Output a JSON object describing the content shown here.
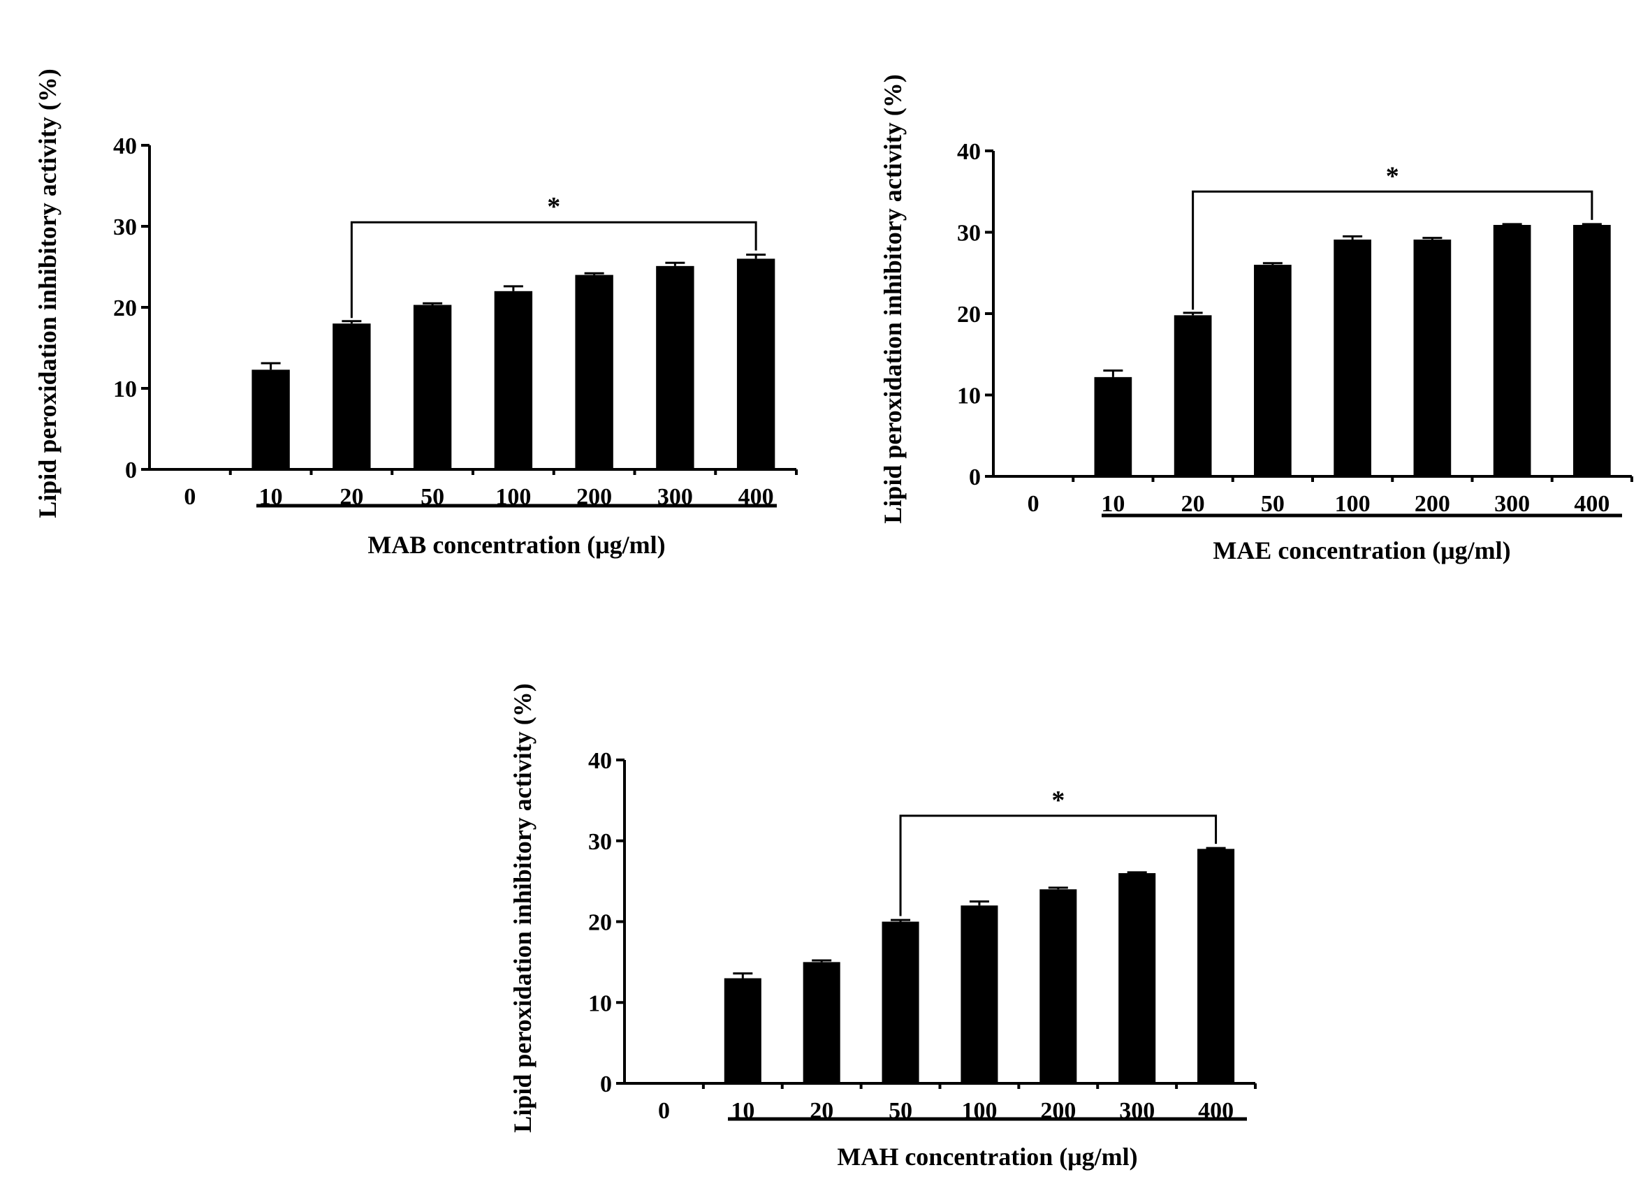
{
  "chart_data": [
    {
      "type": "bar",
      "ylabel": "Lipid peroxidation inhibitory activity (%)",
      "xlabel": "MAB concentration (μg/ml)",
      "categories": [
        "0",
        "10",
        "20",
        "50",
        "100",
        "200",
        "300",
        "400"
      ],
      "values": [
        0,
        12.3,
        18.0,
        20.3,
        22.0,
        24.0,
        25.1,
        26.0
      ],
      "errors": [
        0,
        0.8,
        0.3,
        0.2,
        0.6,
        0.2,
        0.4,
        0.5
      ],
      "ylim": [
        0,
        40
      ],
      "yticks": [
        0,
        10,
        20,
        30,
        40
      ],
      "significance": {
        "label": "*",
        "from": "20",
        "to": "400"
      },
      "underline_from": "10",
      "color": "#000000"
    },
    {
      "type": "bar",
      "ylabel": "Lipid peroxidation inhibitory activity (%)",
      "xlabel": "MAE concentration (μg/ml)",
      "categories": [
        "0",
        "10",
        "20",
        "50",
        "100",
        "200",
        "300",
        "400"
      ],
      "values": [
        0,
        12.2,
        19.8,
        26.0,
        29.1,
        29.1,
        30.9,
        30.9
      ],
      "errors": [
        0,
        0.8,
        0.3,
        0.2,
        0.4,
        0.2,
        0.1,
        0.1
      ],
      "ylim": [
        0,
        40
      ],
      "yticks": [
        0,
        10,
        20,
        30,
        40
      ],
      "significance": {
        "label": "*",
        "from": "20",
        "to": "400"
      },
      "underline_from": "10",
      "color": "#000000"
    },
    {
      "type": "bar",
      "ylabel": "Lipid peroxidation inhibitory activity (%)",
      "xlabel": "MAH concentration (μg/ml)",
      "categories": [
        "0",
        "10",
        "20",
        "50",
        "100",
        "200",
        "300",
        "400"
      ],
      "values": [
        0,
        13.0,
        15.0,
        20.0,
        22.0,
        24.0,
        26.0,
        29.0
      ],
      "errors": [
        0,
        0.6,
        0.2,
        0.2,
        0.5,
        0.2,
        0.1,
        0.1
      ],
      "ylim": [
        0,
        40
      ],
      "yticks": [
        0,
        10,
        20,
        30,
        40
      ],
      "significance": {
        "label": "*",
        "from": "50",
        "to": "400"
      },
      "underline_from": "10",
      "color": "#000000"
    }
  ]
}
